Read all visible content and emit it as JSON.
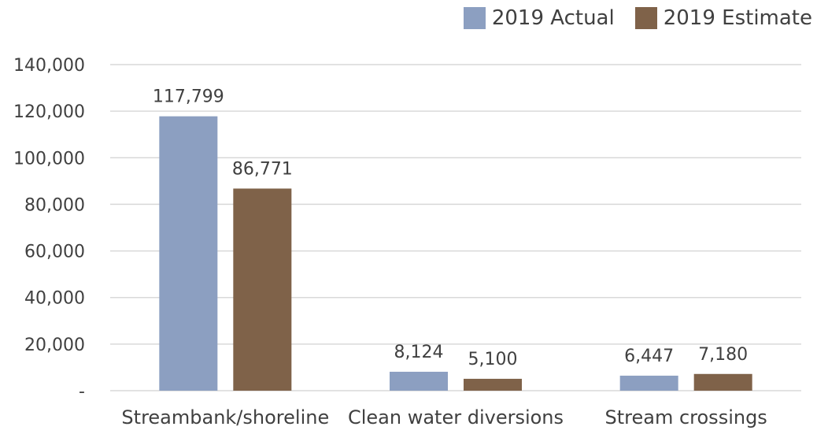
{
  "chart_data": {
    "type": "bar",
    "categories": [
      "Streambank/shoreline",
      "Clean water diversions",
      "Stream crossings"
    ],
    "series": [
      {
        "name": "2019 Actual",
        "values": [
          117799,
          8124,
          6447
        ],
        "labels": [
          "117,799",
          "8,124",
          "6,447"
        ],
        "color": "#8c9fc1"
      },
      {
        "name": "2019 Estimate",
        "values": [
          86771,
          5100,
          7180
        ],
        "labels": [
          "86,771",
          "5,100",
          "7,180"
        ],
        "color": "#7f6249"
      }
    ],
    "y_ticks": [
      "-",
      "20,000",
      "40,000",
      "60,000",
      "80,000",
      "100,000",
      "120,000",
      "140,000"
    ],
    "ylim": [
      0,
      140000
    ],
    "grid": true,
    "legend_position": "top-right",
    "gridline_color": "#d9d9d9",
    "text_color": "#404040"
  }
}
